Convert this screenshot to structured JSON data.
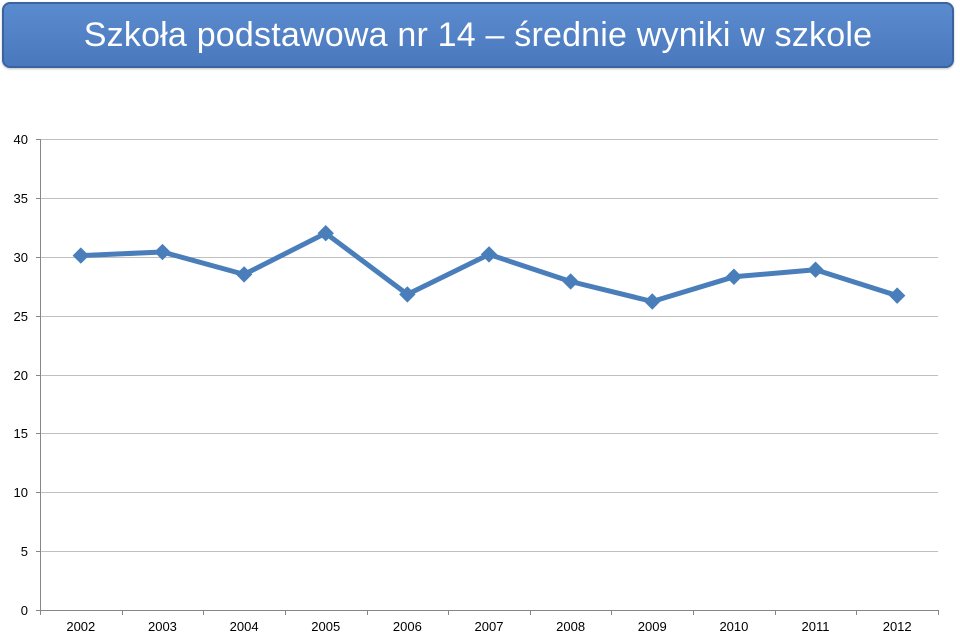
{
  "header": {
    "title": "Szkoła podstawowa nr 14 – średnie wyniki w szkole"
  },
  "colors": {
    "banner": "#4f81bd",
    "series": "#4a7ebb",
    "grid": "#c0c0c0",
    "axis": "#868686"
  },
  "chart_data": {
    "type": "line",
    "title": "Szkoła podstawowa nr 14 – średnie wyniki w szkole",
    "xlabel": "",
    "ylabel": "",
    "categories": [
      "2002",
      "2003",
      "2004",
      "2005",
      "2006",
      "2007",
      "2008",
      "2009",
      "2010",
      "2011",
      "2012"
    ],
    "series": [
      {
        "values": [
          30.1,
          30.4,
          28.5,
          32.0,
          26.8,
          30.2,
          27.9,
          26.2,
          28.3,
          28.9,
          26.7
        ],
        "marker": "diamond"
      }
    ],
    "ylim": [
      0,
      40
    ],
    "yticks": [
      0,
      5,
      10,
      15,
      20,
      25,
      30,
      35,
      40
    ],
    "grid": "horizontal",
    "legend": "none"
  }
}
